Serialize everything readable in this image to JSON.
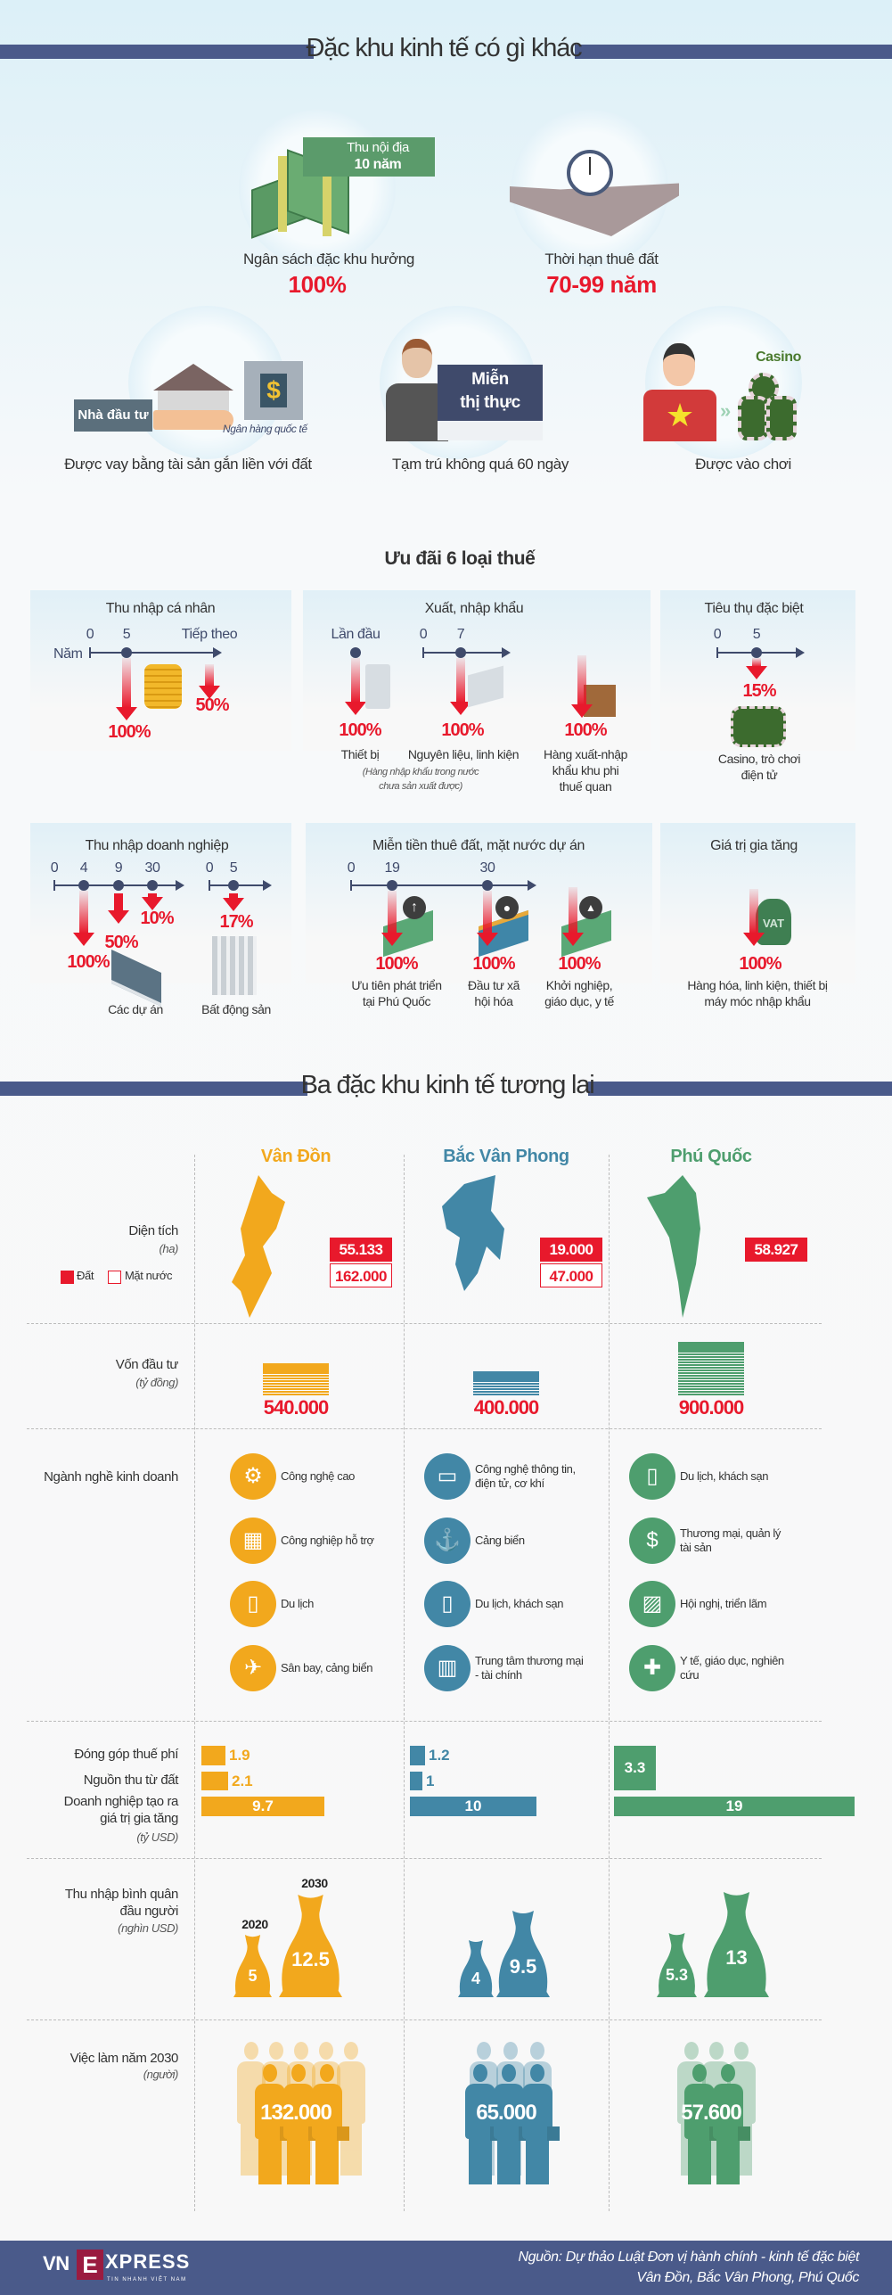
{
  "colors": {
    "accent_red": "#e8192c",
    "navy": "#4a5a8a",
    "van_don": "#f2a81d",
    "bac_van_phong": "#4287a6",
    "phu_quoc": "#4e9e6e"
  },
  "section1": {
    "title": "Đặc khu kinh tế có gì khác",
    "budget": {
      "badge_line1": "Thu nội địa",
      "badge_line2": "10 năm",
      "caption": "Ngân sách đặc khu hưởng",
      "value": "100%",
      "icon": "money-stack-icon"
    },
    "land_lease": {
      "caption": "Thời hạn thuê đất",
      "value": "70-99 năm",
      "icon": "stopwatch-icon"
    },
    "loan": {
      "investor_tag": "Nhà đầu tư",
      "bank_label": "Ngân hàng quốc tế",
      "caption": "Được vay bằng tài sản gắn liền với đất",
      "icon": "house-bank-icon"
    },
    "visa": {
      "sign_line1": "Miễn",
      "sign_line2": "thị thực",
      "caption": "Tạm trú không quá 60 ngày",
      "icon": "foreigner-icon"
    },
    "casino": {
      "label": "Casino",
      "caption": "Được vào chơi",
      "icon": "casino-chips-icon"
    }
  },
  "taxes": {
    "title": "Ưu đãi 6 loại thuế",
    "personal_income": {
      "title": "Thu nhập cá nhân",
      "axis_label": "Năm",
      "ticks": [
        "0",
        "5",
        "Tiếp theo"
      ],
      "rates": [
        "100%",
        "50%"
      ]
    },
    "import_export": {
      "title": "Xuất, nhập khẩu",
      "first_label": "Lần đầu",
      "ticks": [
        "0",
        "7"
      ],
      "items": [
        {
          "rate": "100%",
          "label": "Thiết bị",
          "note_line1": "(Hàng nhập khẩu trong nước",
          "note_line2": "chưa sản xuất được)"
        },
        {
          "rate": "100%",
          "label": "Nguyên liệu, linh kiện"
        },
        {
          "rate": "100%",
          "label_line1": "Hàng xuất-nhập",
          "label_line2": "khẩu khu phi",
          "label_line3": "thuế quan"
        }
      ]
    },
    "special_consumption": {
      "title": "Tiêu thụ đặc biệt",
      "ticks": [
        "0",
        "5"
      ],
      "rate": "15%",
      "label_line1": "Casino, trò chơi",
      "label_line2": "điện tử"
    },
    "corporate_income": {
      "title": "Thu nhập doanh nghiệp",
      "ticks_projects": [
        "0",
        "4",
        "9",
        "30"
      ],
      "rates_projects": [
        "100%",
        "50%",
        "10%"
      ],
      "ticks_real_estate": [
        "0",
        "5"
      ],
      "rate_real_estate": "17%",
      "label_projects": "Các dự án",
      "label_real_estate": "Bất động sản"
    },
    "land_rent": {
      "title": "Miễn tiền thuê đất, mặt nước dự án",
      "ticks": [
        "0",
        "19",
        "30"
      ],
      "items": [
        {
          "rate": "100%",
          "line1": "Ưu tiên phát triển",
          "line2": "tại Phú Quốc"
        },
        {
          "rate": "100%",
          "line1": "Đầu tư xã",
          "line2": "hội hóa"
        },
        {
          "rate": "100%",
          "line1": "Khởi nghiệp,",
          "line2": "giáo dục, y tế"
        }
      ]
    },
    "vat": {
      "title": "Giá trị gia tăng",
      "bag_label": "VAT",
      "rate": "100%",
      "line1": "Hàng hóa, linh kiện, thiết bị",
      "line2": "máy móc nhập khẩu"
    }
  },
  "zones": {
    "title": "Ba đặc khu kinh tế tương lai",
    "row_labels": {
      "area": "Diện tích",
      "area_unit": "(ha)",
      "legend_land": "Đất",
      "legend_water": "Mặt nước",
      "capital": "Vốn đầu tư",
      "capital_unit": "(tỷ đồng)",
      "industries": "Ngành nghề kinh doanh",
      "tax_fee": "Đóng góp thuế phí",
      "land_revenue": "Nguồn thu từ đất",
      "value_added_line1": "Doanh nghiệp tạo ra",
      "value_added_line2": "giá trị gia tăng",
      "bars_unit": "(tỷ USD)",
      "income_line1": "Thu nhập bình quân",
      "income_line2": "đầu người",
      "income_unit": "(nghìn USD)",
      "year_2020": "2020",
      "year_2030": "2030",
      "jobs": "Việc làm năm 2030",
      "jobs_unit": "(người)"
    },
    "columns": [
      {
        "name": "Vân Đồn",
        "color": "#f2a81d",
        "area_land": "55.133",
        "area_water": "162.000",
        "capital": "540.000",
        "capital_value": 540000,
        "industries": [
          {
            "label": "Công nghệ cao",
            "icon": "robot-arm-icon"
          },
          {
            "label": "Công nghiệp hỗ trợ",
            "icon": "chip-icon"
          },
          {
            "label": "Du lịch",
            "icon": "suitcase-icon"
          },
          {
            "label": "Sân bay, cảng biển",
            "icon": "plane-ship-icon"
          }
        ],
        "tax_fee": 1.9,
        "land_revenue": 2.1,
        "value_added": 9.7,
        "income_2020": 5,
        "income_2030": 12.5,
        "jobs": "132.000"
      },
      {
        "name": "Bắc Vân Phong",
        "color": "#4287a6",
        "area_land": "19.000",
        "area_water": "47.000",
        "capital": "400.000",
        "capital_value": 400000,
        "industries": [
          {
            "label": "Công nghệ thông tin, điện tử, cơ khí",
            "icon": "monitor-icon"
          },
          {
            "label": "Cảng biển",
            "icon": "ship-icon"
          },
          {
            "label": "Du lịch, khách sạn",
            "icon": "suitcase-icon"
          },
          {
            "label": "Trung tâm thương mại - tài chính",
            "icon": "building-icon"
          }
        ],
        "tax_fee": 1.2,
        "land_revenue": 1,
        "value_added": 10,
        "income_2020": 4,
        "income_2030": 9.5,
        "jobs": "65.000"
      },
      {
        "name": "Phú Quốc",
        "color": "#4e9e6e",
        "area_land": "58.927",
        "capital": "900.000",
        "capital_value": 900000,
        "industries": [
          {
            "label": "Du lịch, khách sạn",
            "icon": "suitcase-icon"
          },
          {
            "label": "Thương mại, quản lý tài sản",
            "icon": "money-bag-icon"
          },
          {
            "label": "Hội nghị, triển lãm",
            "icon": "picture-frame-icon"
          },
          {
            "label": "Y tế, giáo dục, nghiên cứu",
            "icon": "syringe-graduation-icon"
          }
        ],
        "tax_fee": 3.3,
        "land_revenue": null,
        "value_added": 19,
        "income_2020": 5.3,
        "income_2030": 13,
        "jobs": "57.600"
      }
    ]
  },
  "footer": {
    "logo_vn": "VN",
    "logo_e": "E",
    "logo_xpress": "XPRESS",
    "logo_tagline": "TIN NHANH VIỆT NAM",
    "source_line1": "Nguồn: Dự thảo Luật Đơn vị hành chính - kinh tế đặc biệt",
    "source_line2": "Vân Đồn, Bắc Vân Phong, Phú Quốc"
  }
}
